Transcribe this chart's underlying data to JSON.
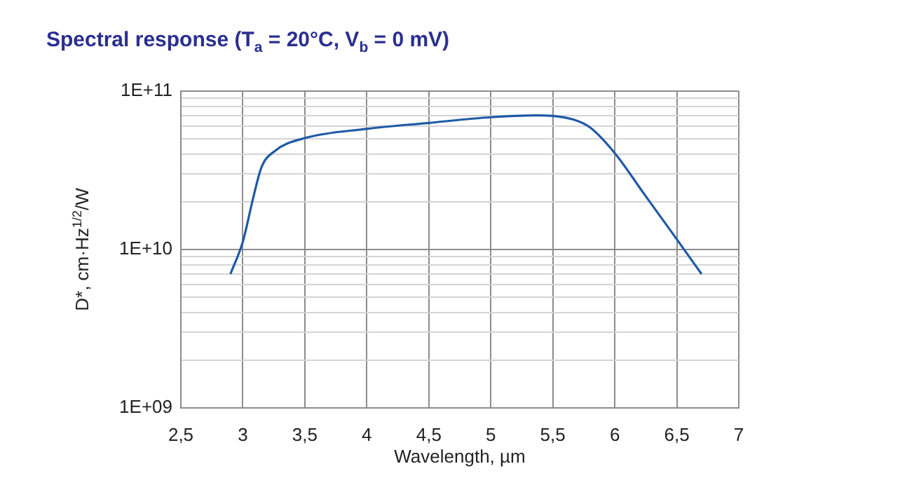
{
  "chart_data": {
    "type": "line",
    "title": "Spectral response (T$_{a}$ = 20°C, V$_{b}$ = 0 mV)",
    "xlabel": "Wavelength, µm",
    "ylabel": "D*, cm·Hz$^{1/2}$/W",
    "log": "y",
    "grid": true,
    "legend": false,
    "marker": "none",
    "line_style": "solid",
    "xlim": [
      2.5,
      7
    ],
    "xticks": [
      {
        "value": 2.5,
        "label": "2,5"
      },
      3,
      {
        "value": 3.5,
        "label": "3,5"
      },
      4,
      {
        "value": 4.5,
        "label": "4,5"
      },
      5,
      {
        "value": 5.5,
        "label": "5,5"
      },
      6,
      {
        "value": 6.5,
        "label": "6,5"
      },
      7
    ],
    "ylim": [
      1000000000.0,
      100000000000.0
    ],
    "yticks": [
      {
        "value": 1000000000.0,
        "label": "1E+09"
      },
      {
        "value": 2000000000.0,
        "label": null
      },
      {
        "value": 3000000000.0,
        "label": null
      },
      {
        "value": 4000000000.0,
        "label": null
      },
      {
        "value": 5000000000.0,
        "label": null
      },
      {
        "value": 6000000000.0,
        "label": null
      },
      {
        "value": 7000000000.0,
        "label": null
      },
      {
        "value": 8000000000.0,
        "label": null
      },
      {
        "value": 9000000000.0,
        "label": null
      },
      {
        "value": 10000000000.0,
        "label": "1E+10"
      },
      {
        "value": 20000000000.0,
        "label": null
      },
      {
        "value": 30000000000.0,
        "label": null
      },
      {
        "value": 40000000000.0,
        "label": null
      },
      {
        "value": 50000000000.0,
        "label": null
      },
      {
        "value": 60000000000.0,
        "label": null
      },
      {
        "value": 70000000000.0,
        "label": null
      },
      {
        "value": 80000000000.0,
        "label": null
      },
      {
        "value": 90000000000.0,
        "label": null
      },
      {
        "value": 100000000000.0,
        "label": "1E+11"
      }
    ],
    "x": [
      2.9,
      3.0,
      3.08,
      3.15,
      3.26,
      3.5,
      4.0,
      4.5,
      5.0,
      5.37,
      5.5,
      5.67,
      5.8,
      6.0,
      6.23,
      6.5,
      6.7
    ],
    "series": [
      {
        "color": "#1f5aa6",
        "values": [
          7000000000.0,
          11200000000.0,
          20600000000.0,
          33000000000.0,
          42000000000.0,
          50500000000.0,
          57800000000.0,
          63000000000.0,
          68400000000.0,
          70300000000.0,
          69800000000.0,
          66000000000.0,
          59000000000.0,
          40600000000.0,
          22800000000.0,
          11600000000.0,
          7000000000.0
        ]
      }
    ]
  }
}
